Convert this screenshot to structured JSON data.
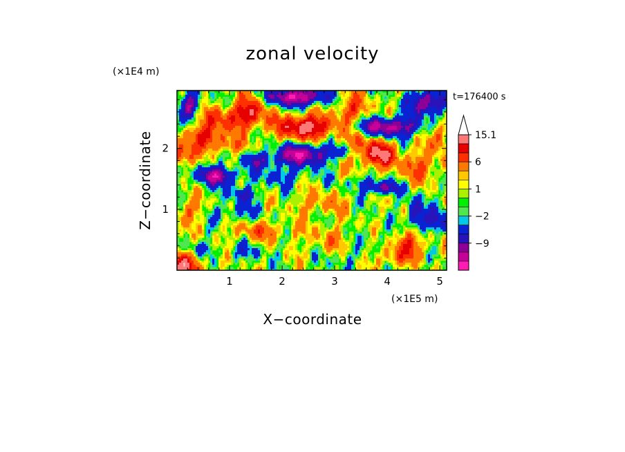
{
  "chart_data": {
    "type": "heatmap",
    "title": "zonal velocity",
    "xlabel": "X−coordinate",
    "ylabel": "Z−coordinate",
    "x_unit": "(×1E5 m)",
    "y_unit": "(×1E4 m)",
    "time_label": "t=176400 s",
    "xlim": [
      0,
      5.13
    ],
    "ylim": [
      0,
      2.95
    ],
    "x_ticks": [
      {
        "value": 1,
        "label": "1"
      },
      {
        "value": 2,
        "label": "2"
      },
      {
        "value": 3,
        "label": "3"
      },
      {
        "value": 4,
        "label": "4"
      },
      {
        "value": 5,
        "label": "5"
      }
    ],
    "y_ticks": [
      {
        "value": 1,
        "label": "1"
      },
      {
        "value": 2,
        "label": "2"
      }
    ],
    "colorbar": {
      "levels": [
        -15,
        -12,
        -9,
        -6,
        -3,
        -2,
        -1,
        0,
        1,
        2,
        3,
        6,
        9,
        12,
        15.1
      ],
      "colors": [
        "#ff1cb4",
        "#c8009a",
        "#8c0096",
        "#2814ba",
        "#0a23d2",
        "#00c8e6",
        "#50e650",
        "#00f000",
        "#aaf000",
        "#ffff00",
        "#ffc800",
        "#ff7800",
        "#ff3000",
        "#e60000",
        "#ff7878",
        "#ffb4b4"
      ],
      "labels": [
        {
          "value": 15.1,
          "label": "15.1"
        },
        {
          "value": 6,
          "label": "6"
        },
        {
          "value": 1,
          "label": "1"
        },
        {
          "value": -2,
          "label": "−2"
        },
        {
          "value": -9,
          "label": "−9"
        }
      ]
    },
    "features": [
      {
        "x": 0.0,
        "z": 0.05,
        "amp": 12,
        "sx": 0.45,
        "sz": 0.25
      },
      {
        "x": 0.55,
        "z": 2.2,
        "amp": 9,
        "sx": 0.35,
        "sz": 0.18
      },
      {
        "x": 0.25,
        "z": 2.7,
        "amp": -11,
        "sx": 0.18,
        "sz": 0.2
      },
      {
        "x": 0.1,
        "z": 1.9,
        "amp": 9,
        "sx": 0.25,
        "sz": 0.18
      },
      {
        "x": 0.75,
        "z": 1.55,
        "amp": -12,
        "sx": 0.38,
        "sz": 0.15
      },
      {
        "x": 0.9,
        "z": 2.5,
        "amp": 7,
        "sx": 0.5,
        "sz": 0.2
      },
      {
        "x": 1.0,
        "z": 2.05,
        "amp": 5,
        "sx": 0.35,
        "sz": 0.12
      },
      {
        "x": 1.25,
        "z": 1.25,
        "amp": -5,
        "sx": 0.35,
        "sz": 0.12
      },
      {
        "x": 1.05,
        "z": 0.95,
        "amp": -4,
        "sx": 0.5,
        "sz": 0.15
      },
      {
        "x": 1.4,
        "z": 2.6,
        "amp": 9,
        "sx": 0.3,
        "sz": 0.25
      },
      {
        "x": 1.6,
        "z": 1.8,
        "amp": -7,
        "sx": 0.3,
        "sz": 0.12
      },
      {
        "x": 1.95,
        "z": 2.85,
        "amp": -5,
        "sx": 0.3,
        "sz": 0.12
      },
      {
        "x": 2.35,
        "z": 2.85,
        "amp": -14,
        "sx": 0.45,
        "sz": 0.15
      },
      {
        "x": 2.45,
        "z": 2.35,
        "amp": 14,
        "sx": 0.55,
        "sz": 0.2
      },
      {
        "x": 2.4,
        "z": 1.9,
        "amp": -14,
        "sx": 0.5,
        "sz": 0.17
      },
      {
        "x": 2.0,
        "z": 1.55,
        "amp": -4,
        "sx": 0.5,
        "sz": 0.15
      },
      {
        "x": 1.6,
        "z": 0.65,
        "amp": 5,
        "sx": 0.6,
        "sz": 0.15
      },
      {
        "x": 1.3,
        "z": 0.3,
        "amp": -3,
        "sx": 0.4,
        "sz": 0.12
      },
      {
        "x": 2.7,
        "z": 1.1,
        "amp": 4,
        "sx": 0.5,
        "sz": 0.2
      },
      {
        "x": 2.9,
        "z": 0.5,
        "amp": 3,
        "sx": 0.5,
        "sz": 0.25
      },
      {
        "x": 3.15,
        "z": 0.2,
        "amp": -2.5,
        "sx": 0.3,
        "sz": 0.15
      },
      {
        "x": 3.2,
        "z": 1.95,
        "amp": -5,
        "sx": 0.25,
        "sz": 0.12
      },
      {
        "x": 3.35,
        "z": 2.65,
        "amp": 7,
        "sx": 0.3,
        "sz": 0.25
      },
      {
        "x": 3.5,
        "z": 2.0,
        "amp": 6,
        "sx": 0.4,
        "sz": 0.3
      },
      {
        "x": 3.55,
        "z": 1.45,
        "amp": -3,
        "sx": 0.4,
        "sz": 0.1
      },
      {
        "x": 4.0,
        "z": 2.35,
        "amp": -14,
        "sx": 0.6,
        "sz": 0.15
      },
      {
        "x": 4.75,
        "z": 2.75,
        "amp": -13,
        "sx": 0.3,
        "sz": 0.2
      },
      {
        "x": 3.9,
        "z": 1.9,
        "amp": 10,
        "sx": 0.3,
        "sz": 0.2
      },
      {
        "x": 3.9,
        "z": 1.35,
        "amp": -10,
        "sx": 0.3,
        "sz": 0.1
      },
      {
        "x": 4.6,
        "z": 1.7,
        "amp": 6,
        "sx": 0.4,
        "sz": 0.25
      },
      {
        "x": 4.55,
        "z": 0.9,
        "amp": -9,
        "sx": 0.15,
        "sz": 0.3
      },
      {
        "x": 4.45,
        "z": 0.45,
        "amp": 8,
        "sx": 0.3,
        "sz": 0.25
      },
      {
        "x": 4.95,
        "z": 0.8,
        "amp": -6,
        "sx": 0.3,
        "sz": 0.2
      },
      {
        "x": 5.0,
        "z": 2.2,
        "amp": 7,
        "sx": 0.2,
        "sz": 0.25
      },
      {
        "x": 4.1,
        "z": 0.2,
        "amp": 5,
        "sx": 0.3,
        "sz": 0.15
      },
      {
        "x": 3.75,
        "z": 0.55,
        "amp": -2,
        "sx": 0.3,
        "sz": 0.15
      },
      {
        "x": 0.4,
        "z": 0.35,
        "amp": -4,
        "sx": 0.3,
        "sz": 0.12
      },
      {
        "x": 0.3,
        "z": 1.0,
        "amp": 5,
        "sx": 0.3,
        "sz": 0.2
      }
    ]
  }
}
